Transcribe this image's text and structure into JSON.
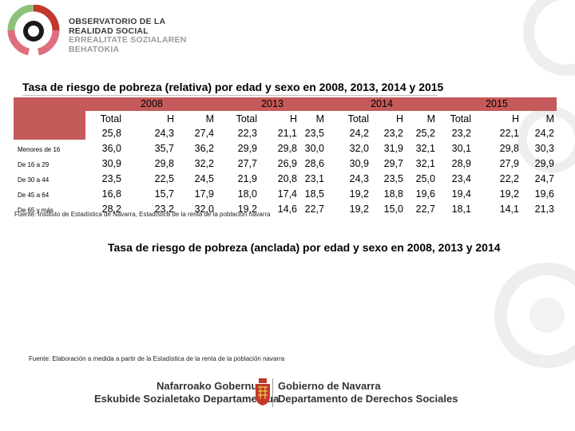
{
  "colors": {
    "accent": "#c55a5a",
    "ring_green": "#8fc07a",
    "ring_pink": "#e06f7d",
    "ring_red": "#c0392b",
    "decor_grey": "#d9d9d9"
  },
  "header": {
    "logo_icon": "observatory-ring-logo",
    "lines": [
      "OBSERVATORIO DE LA",
      "REALIDAD SOCIAL",
      "ERREALITATE SOZIALAREN",
      "BEHATOKIA"
    ]
  },
  "table1": {
    "title": "Tasa de riesgo de pobreza (relativa) por edad y sexo en 2008, 2013, 2014 y 2015",
    "years": [
      "2008",
      "2013",
      "2014",
      "2015"
    ],
    "col_headers": [
      "Total",
      "H",
      "M",
      "Total",
      "H",
      "M",
      "Total",
      "H",
      "M",
      "Total",
      "H",
      "M"
    ],
    "total_row": [
      "25,8",
      "24,3",
      "27,4",
      "22,3",
      "21,1",
      "23,5",
      "24,2",
      "23,2",
      "25,2",
      "23,2",
      "22,1",
      "24,2"
    ],
    "rows": [
      {
        "label": "Menores de 16",
        "values": [
          "36,0",
          "35,7",
          "36,2",
          "29,9",
          "29,8",
          "30,0",
          "32,0",
          "31,9",
          "32,1",
          "30,1",
          "29,8",
          "30,3"
        ]
      },
      {
        "label": "De 16 a 29",
        "values": [
          "30,9",
          "29,8",
          "32,2",
          "27,7",
          "26,9",
          "28,6",
          "30,9",
          "29,7",
          "32,1",
          "28,9",
          "27,9",
          "29,9"
        ]
      },
      {
        "label": "De 30 a 44",
        "values": [
          "23,5",
          "22,5",
          "24,5",
          "21,9",
          "20,8",
          "23,1",
          "24,3",
          "23,5",
          "25,0",
          "23,4",
          "22,2",
          "24,7"
        ]
      },
      {
        "label": "De 45 a 64",
        "values": [
          "16,8",
          "15,7",
          "17,9",
          "18,0",
          "17,4",
          "18,5",
          "19,2",
          "18,8",
          "19,6",
          "19,4",
          "19,2",
          "19,6"
        ]
      },
      {
        "label": "De 65 y más",
        "values": [
          "28,2",
          "23,2",
          "32,0",
          "19,2",
          "14,6",
          "22,7",
          "19,2",
          "15,0",
          "22,7",
          "18,1",
          "14,1",
          "21,3"
        ]
      }
    ],
    "source": "Fuente: Instituto de Estadística de Navarra, Estadística de la renta de la población navarra"
  },
  "table2": {
    "title": "Tasa de riesgo de pobreza (anclada) por edad y sexo en 2008, 2013 y 2014",
    "source": "Fuente: Elaboración a medida a partir de la Estadística de la renta de la población navarra"
  },
  "footer": {
    "left_line1": "Nafarroako Gobernua",
    "left_line2": "Eskubide Sozialetako Departamentua",
    "right_line1": "Gobierno de Navarra",
    "right_line2": "Departamento de Derechos Sociales",
    "shield_icon": "navarra-shield-icon"
  }
}
